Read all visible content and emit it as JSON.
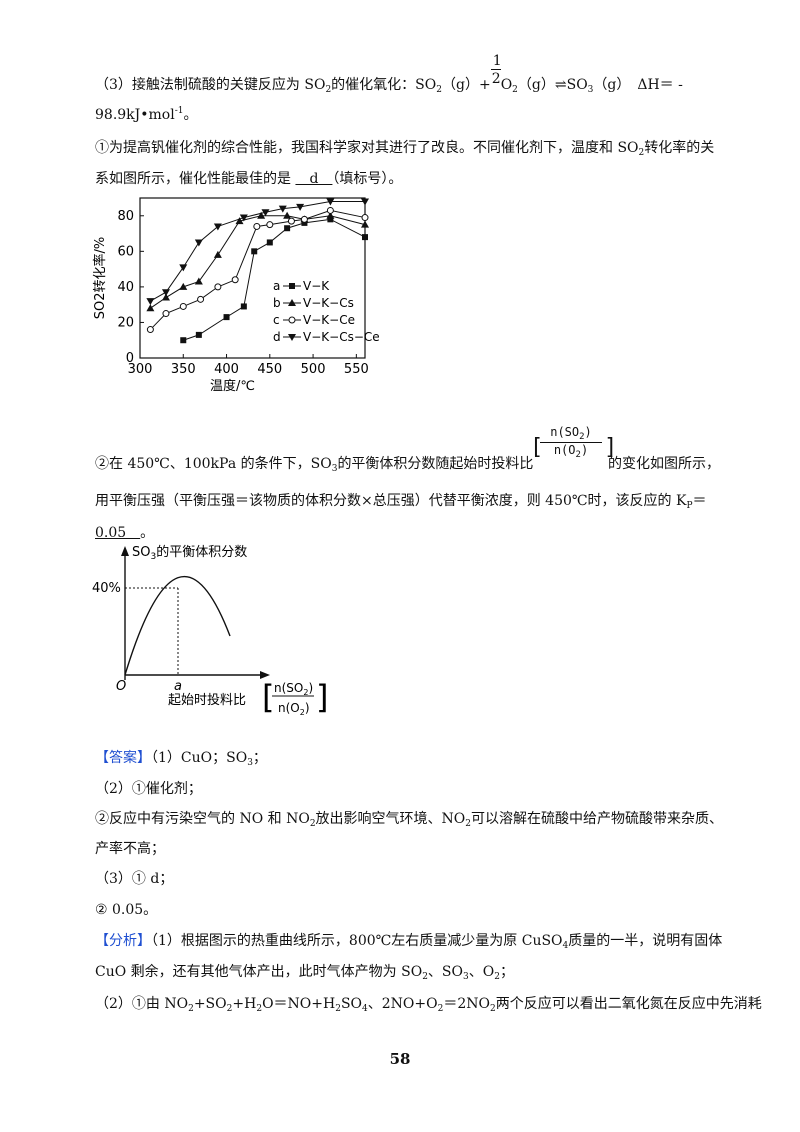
{
  "q3": {
    "line1_a": "（3）接触法制硫酸的关键反应为 SO",
    "line1_b": "的催化氧化：SO",
    "line1_c": "（g）+",
    "half_num": "1",
    "half_den": "2",
    "line1_d": "O",
    "line1_e": "（g）⇌SO",
    "line1_f": "（g）　ΔH＝ -",
    "line2": "98.9kJ•mol",
    "line2_exp": "-1",
    "line2_end": "。",
    "p1_a": "①为提高钒催化剂的综合性能，我国科学家对其进行了改良。不同催化剂下，温度和 SO",
    "p1_b": "转化率的关",
    "p2_a": "系如图所示，催化性能最佳的是 ",
    "p2_ans": "　d　",
    "p2_b": "（填标号）。"
  },
  "chart_data": {
    "type": "line",
    "ylabel": "SO2转化率/%",
    "xlabel": "温度/℃",
    "xlim": [
      300,
      560
    ],
    "ylim": [
      0,
      90
    ],
    "xticks": [
      "300",
      "350",
      "400",
      "450",
      "500",
      "550"
    ],
    "yticks": [
      "0",
      "20",
      "40",
      "60",
      "80"
    ],
    "legend": [
      "a ■ V−K",
      "b ▲ V−K−Cs",
      "c ○ V−K−Ce",
      "d ▼ V−K−Cs−Ce"
    ],
    "series": [
      {
        "name": "a",
        "marker": "square",
        "x": [
          350,
          368,
          400,
          420,
          432,
          450,
          470,
          490,
          520,
          560
        ],
        "y": [
          10,
          13,
          23,
          29,
          60,
          65,
          73,
          76,
          78,
          68
        ]
      },
      {
        "name": "b",
        "marker": "triangle-up",
        "x": [
          312,
          330,
          350,
          368,
          390,
          415,
          440,
          470,
          490,
          520,
          560
        ],
        "y": [
          28,
          34,
          40,
          43,
          58,
          77,
          80,
          80,
          78,
          80,
          75
        ]
      },
      {
        "name": "c",
        "marker": "circle",
        "x": [
          312,
          330,
          350,
          370,
          390,
          410,
          435,
          450,
          475,
          490,
          520,
          560
        ],
        "y": [
          16,
          25,
          29,
          33,
          40,
          44,
          74,
          75,
          77,
          78,
          83,
          79
        ]
      },
      {
        "name": "d",
        "marker": "triangle-down",
        "x": [
          312,
          330,
          350,
          368,
          390,
          420,
          445,
          465,
          485,
          520,
          560
        ],
        "y": [
          32,
          37,
          51,
          65,
          74,
          79,
          82,
          84,
          85,
          88,
          88
        ]
      }
    ]
  },
  "q3b": {
    "p1_a": "②在 450℃、100kPa 的条件下，SO",
    "p1_b": "的平衡体积分数随起始时投料比",
    "frac_num": "n(SO",
    "frac_num_end": ")",
    "frac_den": "n(O",
    "frac_den_end": ")",
    "p1_c": "的变化如图所示，",
    "p2": "用平衡压强（平衡压强＝该物质的体积分数×总压强）代替平衡浓度，则 450℃时，该反应的 K",
    "p2_sub": "P",
    "p2_end": "＝",
    "p3_ans": "0.05　",
    "p3_end": "。"
  },
  "chart2": {
    "ytitle": "SO",
    "ytitle_end": "的平衡体积分数",
    "ytick": "40%",
    "origin": "O",
    "xmark": "a",
    "xlabel": "起始时投料比",
    "frac_num": "n(SO",
    "frac_num_end": ")",
    "frac_den": "n(O",
    "frac_den_end": ")"
  },
  "answer": {
    "tag": "【答案】",
    "l1": "（1）CuO；SO",
    "l1_end": "；",
    "l2": "（2）①催化剂；",
    "l3_a": "②反应中有污染空气的 NO 和 NO",
    "l3_b": "放出影响空气环境、NO",
    "l3_c": "可以溶解在硫酸中给产物硫酸带来杂质、",
    "l4": "产率不高；",
    "l5": "（3）① d；",
    "l6": "② 0.05。"
  },
  "analysis": {
    "tag": "【分析】",
    "l1_a": "（1）根据图示的热重曲线所示，800℃左右质量减少量为原 CuSO",
    "l1_b": "质量的一半，说明有固体",
    "l2_a": "CuO 剩余，还有其他气体产出，此时气体产物为 SO",
    "l2_b": "、SO",
    "l2_c": "、O",
    "l2_d": "；",
    "l3_a": "（2）①由 NO",
    "l3_b": "+SO",
    "l3_c": "+H",
    "l3_d": "O＝NO+H",
    "l3_e": "SO",
    "l3_f": "、2NO+O",
    "l3_g": "＝2NO",
    "l3_h": "两个反应可以看出二氧化氮在反应中先消耗"
  },
  "page_number": "58"
}
